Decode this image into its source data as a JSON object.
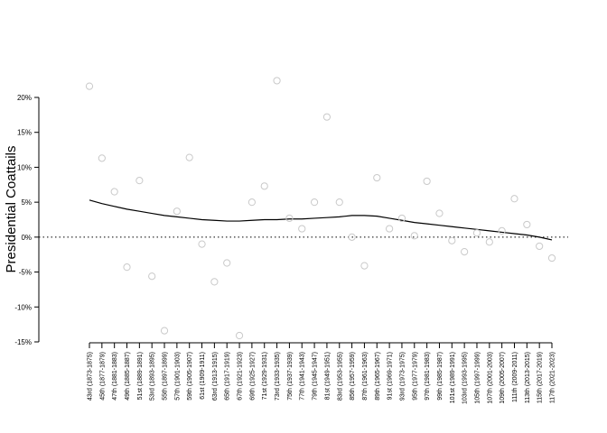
{
  "chart_data": {
    "type": "scatter",
    "title": "",
    "xlabel": "",
    "ylabel": "Presidential Coattails",
    "ylim": [
      -0.15,
      0.2
    ],
    "yticks": [
      -0.15,
      -0.1,
      -0.05,
      0.0,
      0.05,
      0.1,
      0.15,
      0.2
    ],
    "ytick_labels": [
      "-15%",
      "-10%",
      "-5%",
      "0%",
      "5%",
      "10%",
      "15%",
      "20%"
    ],
    "grid": false,
    "reference_line": {
      "y": 0,
      "style": "dotted"
    },
    "categories": [
      "43rd (1873-1875)",
      "45th (1877-1879)",
      "47th (1881-1883)",
      "49th (1885-1887)",
      "51st (1889-1891)",
      "53rd (1893-1895)",
      "55th (1897-1899)",
      "57th (1901-1903)",
      "59th (1905-1907)",
      "61st (1909-1911)",
      "63rd (1913-1915)",
      "65th (1917-1919)",
      "67th (1921-1923)",
      "69th (1925-1927)",
      "71st (1929-1931)",
      "73rd (1933-1935)",
      "75th (1937-1939)",
      "77th (1941-1943)",
      "79th (1945-1947)",
      "81st (1949-1951)",
      "83rd (1953-1955)",
      "85th (1957-1959)",
      "87th (1961-1963)",
      "89th (1965-1967)",
      "91st (1969-1971)",
      "93rd (1973-1975)",
      "95th (1977-1979)",
      "97th (1981-1983)",
      "99th (1985-1987)",
      "101st (1989-1991)",
      "103rd (1993-1995)",
      "105th (1997-1999)",
      "107th (2001-2003)",
      "109th (2005-2007)",
      "111th (2009-2011)",
      "113th (2013-2015)",
      "115th (2017-2019)",
      "117th (2021-2023)"
    ],
    "series": [
      {
        "type": "scatter",
        "marker": "open-circle",
        "color": "#c9c9c9",
        "values": [
          0.216,
          0.113,
          0.065,
          -0.043,
          0.081,
          -0.056,
          -0.134,
          0.037,
          0.114,
          -0.01,
          -0.064,
          -0.037,
          -0.141,
          0.05,
          0.073,
          0.224,
          0.027,
          0.012,
          0.05,
          0.172,
          0.05,
          0.0,
          -0.041,
          0.085,
          0.012,
          0.027,
          0.002,
          0.08,
          0.034,
          -0.005,
          -0.021,
          0.006,
          -0.007,
          0.009,
          0.055,
          0.018,
          -0.013,
          -0.03
        ]
      },
      {
        "type": "line",
        "color": "#000000",
        "values": [
          0.053,
          0.048,
          0.044,
          0.04,
          0.037,
          0.034,
          0.031,
          0.029,
          0.027,
          0.025,
          0.024,
          0.023,
          0.023,
          0.024,
          0.025,
          0.025,
          0.026,
          0.026,
          0.027,
          0.028,
          0.029,
          0.031,
          0.031,
          0.03,
          0.027,
          0.024,
          0.021,
          0.019,
          0.017,
          0.015,
          0.013,
          0.011,
          0.009,
          0.007,
          0.005,
          0.003,
          0.0,
          -0.004
        ]
      }
    ]
  }
}
